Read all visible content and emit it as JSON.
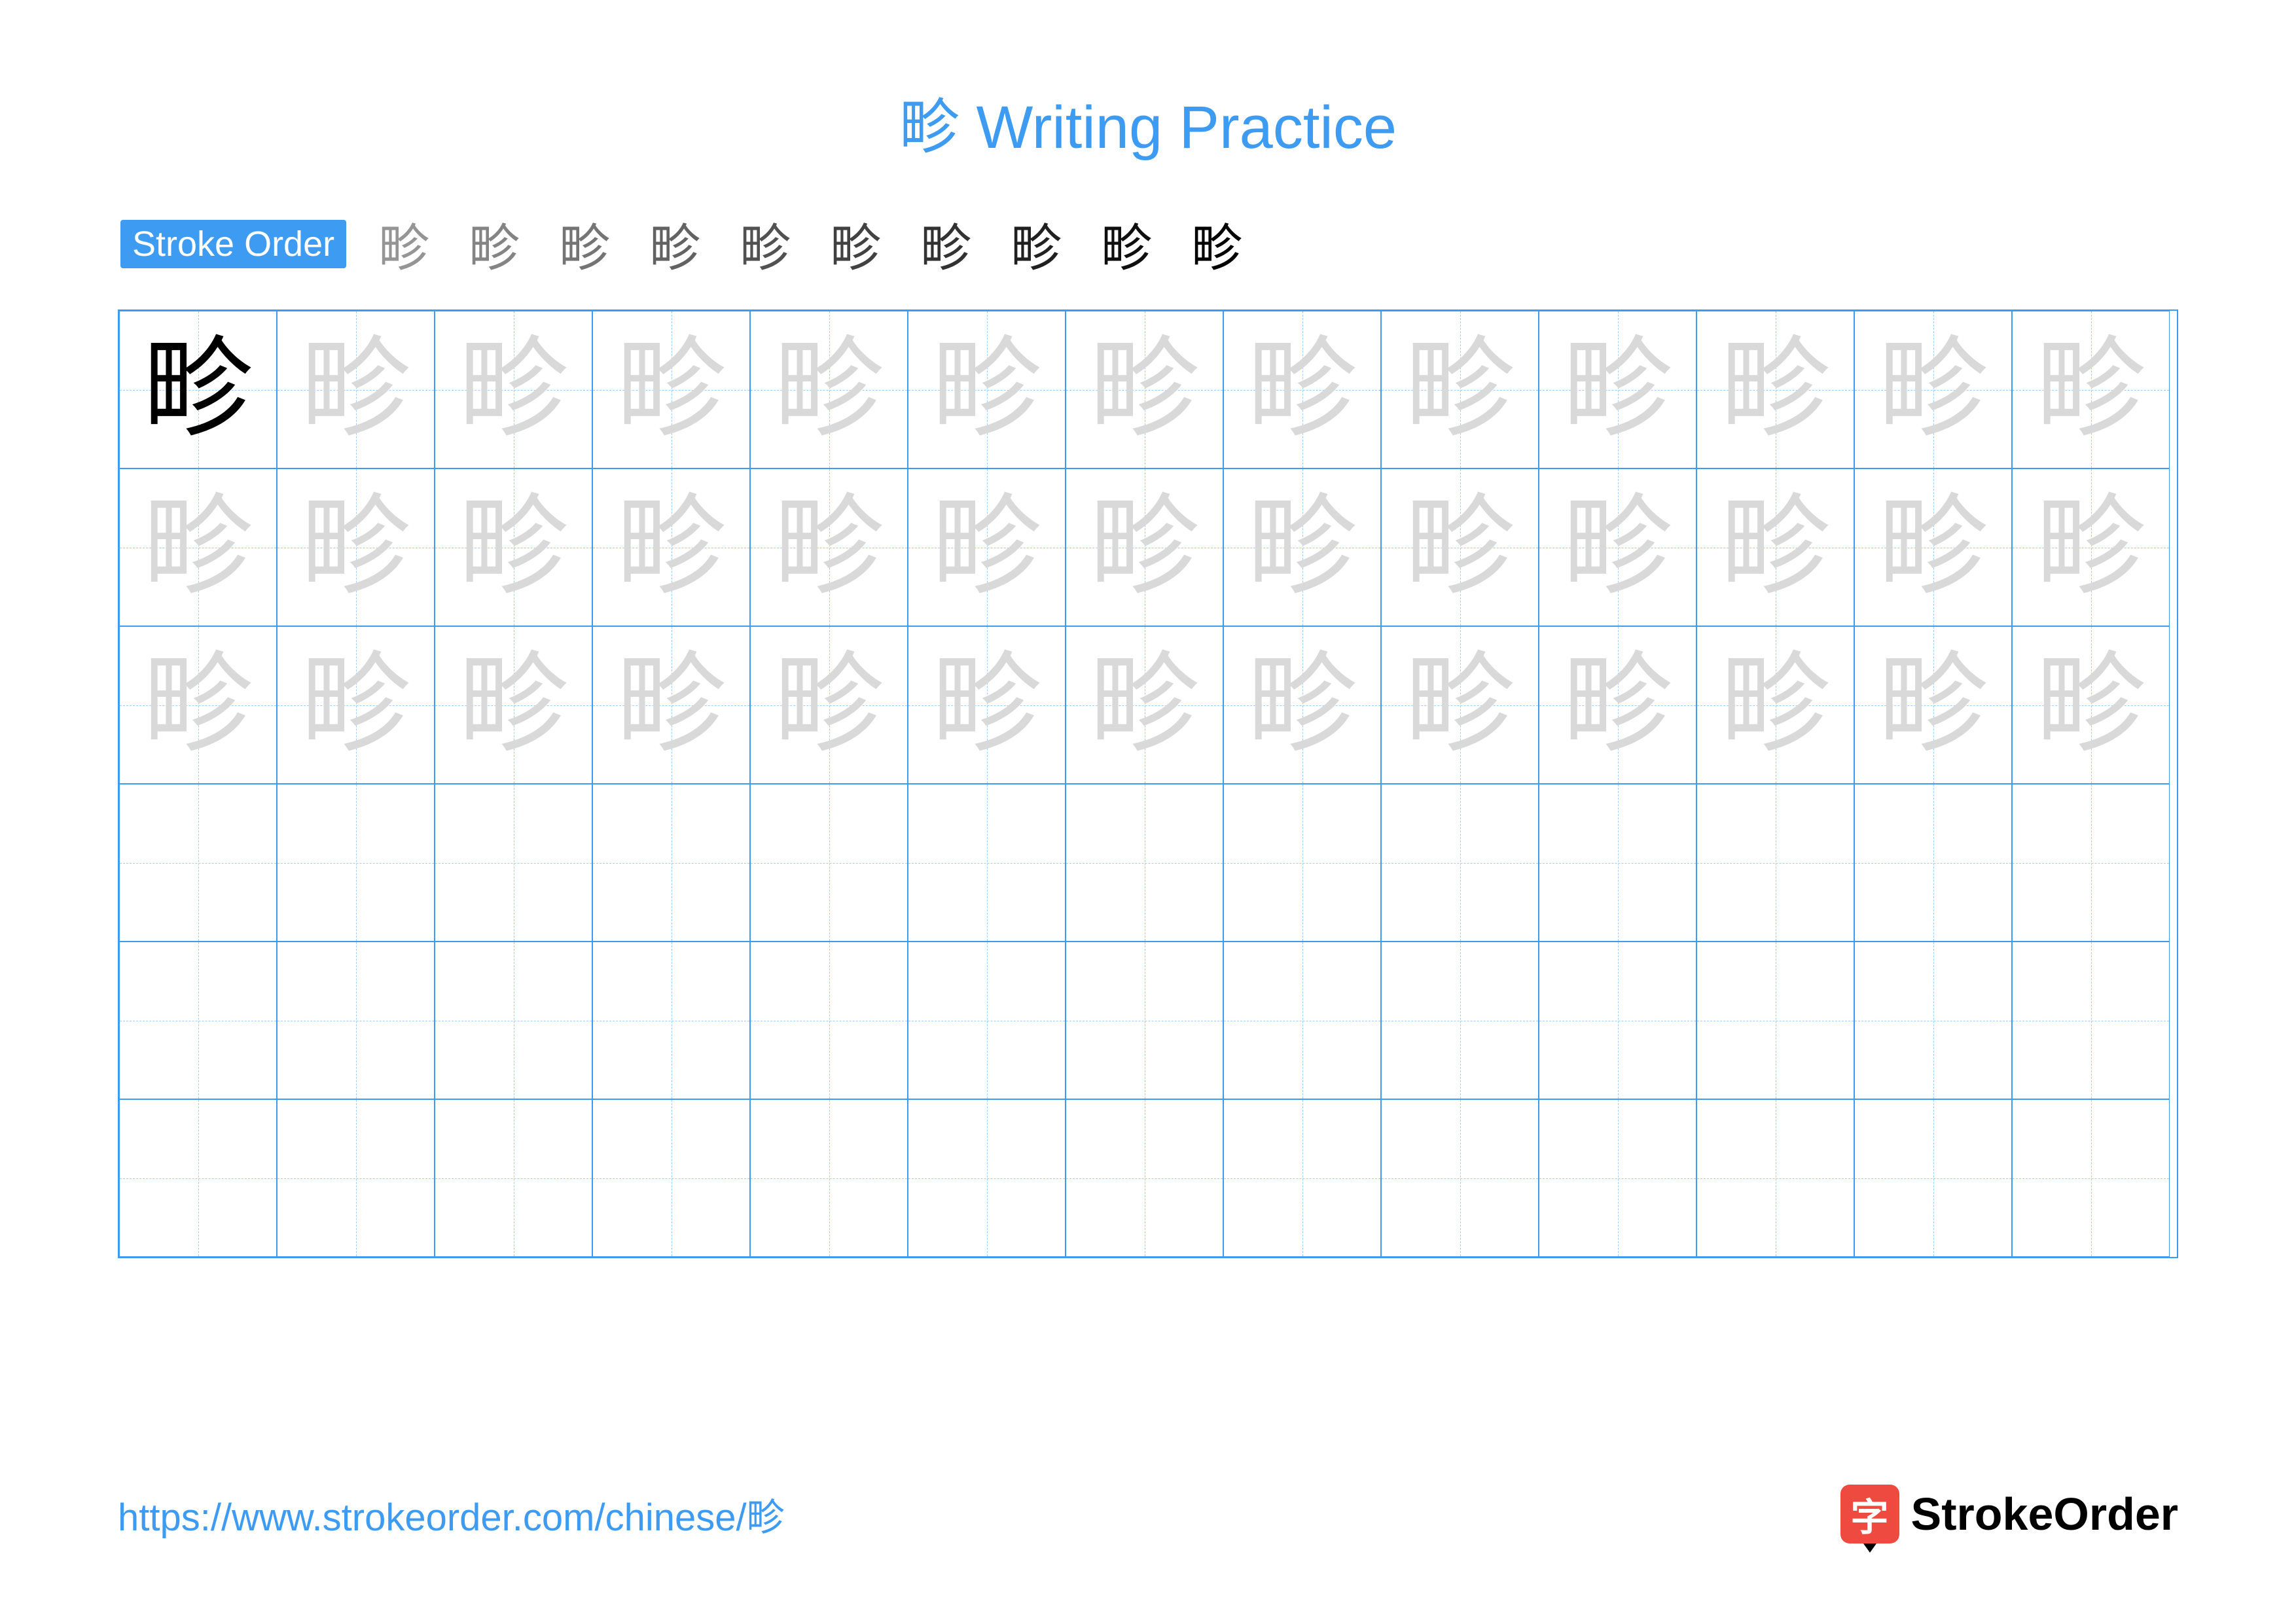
{
  "title": "畛 Writing Practice",
  "colors": {
    "accent": "#3d9bf2",
    "grid_border": "#3d9bf2",
    "guide_dash": "#9dcdf8",
    "title_color": "#3d9bf2",
    "url_color": "#3d9bf2",
    "stroke_label_bg": "#3d9bf2",
    "trace_color": "#d9d9d9",
    "model_color": "#000000",
    "brand_icon_bg": "#ef4a3f",
    "background": "#ffffff"
  },
  "stroke_order": {
    "label": "Stroke Order",
    "character": "畛",
    "stroke_count": 10,
    "step_fontsize": 78
  },
  "grid": {
    "cols": 13,
    "rows": 6,
    "cell_size": 241,
    "character": "畛",
    "char_fontsize": 168,
    "model_row": 0,
    "model_col": 0,
    "traced_rows": 3,
    "blank_rows": 3
  },
  "footer": {
    "url": "https://www.strokeorder.com/chinese/畛",
    "brand_text": "StrokeOrder",
    "brand_icon_char": "字"
  }
}
